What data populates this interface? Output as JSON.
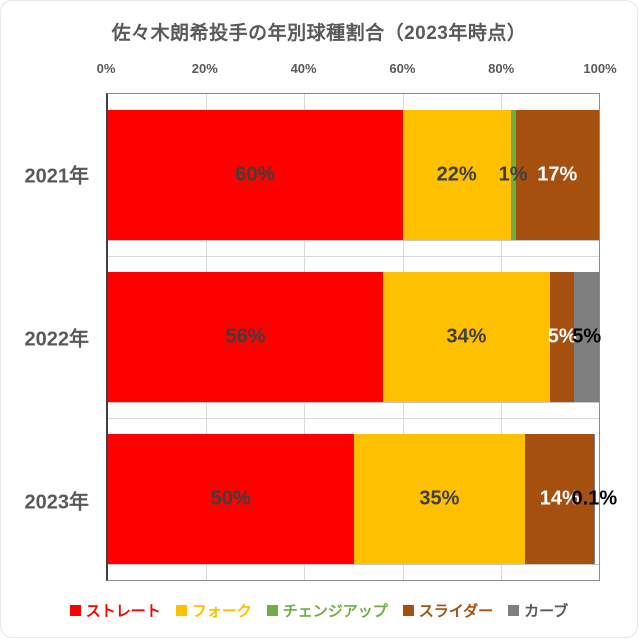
{
  "title": "佐々木朗希投手の年別球種割合（2023年時点）",
  "chart_data": {
    "type": "bar",
    "orientation": "horizontal",
    "stacked": true,
    "title": "佐々木朗希投手の年別球種割合（2023年時点）",
    "categories": [
      "2021年",
      "2022年",
      "2023年"
    ],
    "series": [
      {
        "name": "ストレート",
        "color": "#ff0000",
        "values": [
          60,
          56,
          50
        ]
      },
      {
        "name": "フォーク",
        "color": "#ffc000",
        "values": [
          22,
          34,
          35
        ]
      },
      {
        "name": "チェンジアップ",
        "color": "#70ad47",
        "values": [
          1,
          0,
          0
        ]
      },
      {
        "name": "スライダー",
        "color": "#a5500f",
        "values": [
          17,
          5,
          14
        ]
      },
      {
        "name": "カーブ",
        "color": "#7f7f7f",
        "values": [
          0,
          5,
          0.1
        ]
      }
    ],
    "data_labels": [
      [
        "60%",
        "22%",
        "1%",
        "17%",
        ""
      ],
      [
        "56%",
        "34%",
        "",
        "5%",
        "5%"
      ],
      [
        "50%",
        "35%",
        "",
        "14%",
        "0.1%"
      ]
    ],
    "data_label_colors": [
      [
        "#3f3f3f",
        "#3f3f3f",
        "#3f3f3f",
        "#ffffff",
        ""
      ],
      [
        "#3f3f3f",
        "#3f3f3f",
        "",
        "#ffffff",
        "#000000"
      ],
      [
        "#3f3f3f",
        "#3f3f3f",
        "",
        "#ffffff",
        "#000000"
      ]
    ],
    "xlim": [
      0,
      100
    ],
    "x_ticks": [
      "0%",
      "20%",
      "40%",
      "60%",
      "80%",
      "100%"
    ],
    "grid": true,
    "legend_position": "bottom"
  },
  "legend": {
    "items": [
      {
        "label": "ストレート",
        "color": "#ff0000",
        "text_color": "#ff0000"
      },
      {
        "label": "フォーク",
        "color": "#ffc000",
        "text_color": "#ffc000"
      },
      {
        "label": "チェンジアップ",
        "color": "#70ad47",
        "text_color": "#70ad47"
      },
      {
        "label": "スライダー",
        "color": "#a5500f",
        "text_color": "#a5500f"
      },
      {
        "label": "カーブ",
        "color": "#7f7f7f",
        "text_color": "#595959"
      }
    ]
  }
}
